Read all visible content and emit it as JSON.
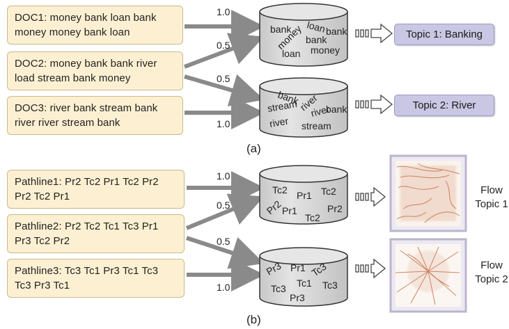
{
  "panel_a": {
    "label": "(a)",
    "docs": [
      {
        "line1": "DOC1: money bank loan bank",
        "line2": "money money bank loan"
      },
      {
        "line1": "DOC2: money bank bank river",
        "line2": "load stream bank money"
      },
      {
        "line1": "DOC3: river bank stream bank",
        "line2": "river river stream bank"
      }
    ],
    "weights": [
      "1.0",
      "0.5",
      "0.5",
      "1.0"
    ],
    "bucket1_words": [
      "bank",
      "loan",
      "bank",
      "money",
      "bank",
      "loan",
      "money"
    ],
    "bucket2_words": [
      "bank",
      "river",
      "stream",
      "river",
      "bank",
      "river",
      "stream"
    ],
    "topics": [
      "Topic 1: Banking",
      "Topic 2: River"
    ]
  },
  "panel_b": {
    "label": "(b)",
    "pathlines": [
      {
        "line1": "Pathline1: Pr2 Tc2 Pr1 Tc2 Pr2",
        "line2": "Pr2 Tc2 Pr1"
      },
      {
        "line1": "Pathline2: Pr2 Tc2 Tc1 Tc3 Pr1",
        "line2": "Pr3 Tc2 Pr2"
      },
      {
        "line1": "Pathline3: Tc3 Tc1 Pr3 Tc1 Tc3",
        "line2": "Tc3 Pr3 Tc1"
      }
    ],
    "weights": [
      "1.0",
      "0.5",
      "0.5",
      "1.0"
    ],
    "bucket1_words": [
      "Tc2",
      "Pr1",
      "Tc2",
      "Pr2",
      "Pr1",
      "Tc2",
      "Pr2"
    ],
    "bucket2_words": [
      "Pr3",
      "Pr1",
      "Tc3",
      "Tc3",
      "Tc1",
      "Tc3",
      "Pr3"
    ],
    "flow_topics": [
      {
        "line1": "Flow",
        "line2": "Topic 1"
      },
      {
        "line1": "Flow",
        "line2": "Topic 2"
      }
    ]
  },
  "colors": {
    "doc_fill": "#fdf0d2",
    "topic_fill": "#c9c7e3",
    "arrow": "#8a8a8a",
    "bucket": "#d9d9d9",
    "flow_orange": "#c8714a"
  }
}
